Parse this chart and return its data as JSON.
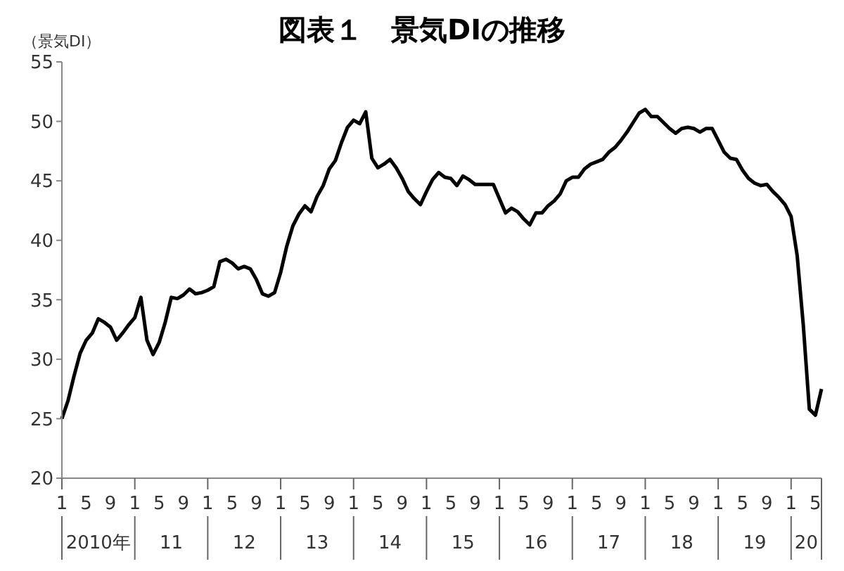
{
  "chart_data": {
    "type": "line",
    "title": "図表１　景気DIの推移",
    "ylabel": "（景気DI）",
    "categories": [
      "1",
      null,
      null,
      null,
      "5",
      null,
      null,
      null,
      "9",
      null,
      null,
      null,
      "1",
      null,
      null,
      null,
      "5",
      null,
      null,
      null,
      "9",
      null,
      null,
      null,
      "1",
      null,
      null,
      null,
      "5",
      null,
      null,
      null,
      "9",
      null,
      null,
      null,
      "1",
      null,
      null,
      null,
      "5",
      null,
      null,
      null,
      "9",
      null,
      null,
      null,
      "1",
      null,
      null,
      null,
      "5",
      null,
      null,
      null,
      "9",
      null,
      null,
      null,
      "1",
      null,
      null,
      null,
      "5",
      null,
      null,
      null,
      "9",
      null,
      null,
      null,
      "1",
      null,
      null,
      null,
      "5",
      null,
      null,
      null,
      "9",
      null,
      null,
      null,
      "1",
      null,
      null,
      null,
      "5",
      null,
      null,
      null,
      "9",
      null,
      null,
      null,
      "1",
      null,
      null,
      null,
      "5",
      null,
      null,
      null,
      "9",
      null,
      null,
      null,
      "1",
      null,
      null,
      null,
      "5",
      null,
      null,
      null,
      "9",
      null,
      null,
      null,
      "1",
      null,
      null,
      null,
      "5",
      null
    ],
    "series": [
      {
        "color": "#000000",
        "values": [
          25.0,
          26.5,
          28.6,
          30.5,
          31.6,
          32.2,
          33.4,
          33.1,
          32.7,
          31.6,
          32.2,
          32.9,
          33.5,
          35.2,
          31.6,
          30.4,
          31.4,
          33.1,
          35.2,
          35.1,
          35.4,
          35.9,
          35.5,
          35.6,
          35.8,
          36.1,
          38.2,
          38.4,
          38.1,
          37.6,
          37.8,
          37.6,
          36.7,
          35.5,
          35.3,
          35.6,
          37.3,
          39.5,
          41.2,
          42.2,
          42.9,
          42.4,
          43.7,
          44.6,
          46.0,
          46.7,
          48.2,
          49.5,
          50.1,
          49.8,
          50.8,
          46.9,
          46.1,
          46.4,
          46.8,
          46.1,
          45.2,
          44.1,
          43.5,
          43.0,
          44.1,
          45.1,
          45.7,
          45.3,
          45.2,
          44.6,
          45.4,
          45.1,
          44.7,
          44.7,
          44.7,
          44.7,
          43.5,
          42.3,
          42.7,
          42.4,
          41.8,
          41.3,
          42.3,
          42.3,
          42.9,
          43.3,
          43.9,
          45.0,
          45.3,
          45.3,
          46.0,
          46.4,
          46.6,
          46.8,
          47.4,
          47.8,
          48.4,
          49.1,
          49.9,
          50.7,
          51.0,
          50.4,
          50.4,
          49.9,
          49.4,
          49.0,
          49.4,
          49.5,
          49.4,
          49.1,
          49.4,
          49.4,
          48.4,
          47.4,
          46.9,
          46.8,
          45.9,
          45.2,
          44.8,
          44.6,
          44.7,
          44.1,
          43.6,
          43.0,
          42.0,
          38.7,
          32.9,
          25.8,
          25.3,
          27.5
        ]
      }
    ],
    "annotations": [
      "2010年",
      "11",
      "12",
      "13",
      "14",
      "15",
      "16",
      "17",
      "18",
      "19",
      "20"
    ],
    "ylim": [
      20,
      55
    ],
    "yticks": [
      20,
      25,
      30,
      35,
      40,
      45,
      50,
      55
    ],
    "grid": false,
    "legend": false,
    "marker": "none",
    "line_style": "solid"
  }
}
